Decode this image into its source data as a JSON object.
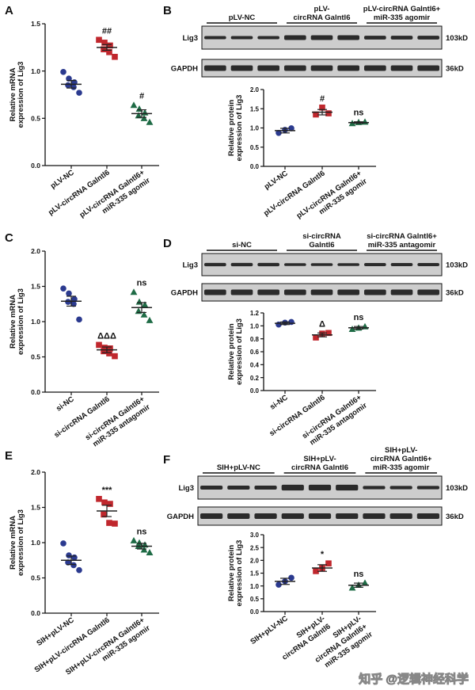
{
  "panels": [
    {
      "letter": "A",
      "kind": "scatter",
      "ylabel": [
        "Relative mRNA",
        "expression of Lig3"
      ],
      "ylim": [
        0,
        1.5
      ],
      "ticks": [
        "0.0",
        "0.5",
        "1.0",
        "1.5"
      ],
      "categories": [
        [
          "pLV-NC"
        ],
        [
          "pLV-circRNA Galntl6"
        ],
        [
          "pLV-circRNA Galntl6+",
          "miR-335 agomir"
        ]
      ],
      "groups": [
        {
          "color": "#2b3a8f",
          "shape": "circle",
          "mean": 0.86,
          "sem": 0.04,
          "points": [
            0.99,
            0.92,
            0.88,
            0.85,
            0.83,
            0.77
          ],
          "mark": ""
        },
        {
          "color": "#c0272d",
          "shape": "square",
          "mean": 1.25,
          "sem": 0.03,
          "points": [
            1.33,
            1.3,
            1.27,
            1.23,
            1.2,
            1.15
          ],
          "mark": "##"
        },
        {
          "color": "#1e6b45",
          "shape": "triangle",
          "mean": 0.55,
          "sem": 0.04,
          "points": [
            0.64,
            0.6,
            0.56,
            0.53,
            0.5,
            0.46
          ],
          "mark": "#"
        }
      ]
    },
    {
      "letter": "B",
      "kind": "blot",
      "blot_groups": [
        [
          "pLV-NC"
        ],
        [
          "pLV-",
          "circRNA Galntl6"
        ],
        [
          "pLV-circRNA Galntl6+",
          "miR-335 agomir"
        ]
      ],
      "bands": [
        {
          "name": "Lig3",
          "size": "103kD"
        },
        {
          "name": "GAPDH",
          "size": "36kD"
        }
      ],
      "ylabel": [
        "Relative protein",
        "expression of Lig3"
      ],
      "ylim": [
        0,
        2.0
      ],
      "ticks": [
        "0.0",
        "0.5",
        "1.0",
        "1.5",
        "2.0"
      ],
      "categories": [
        [
          "pLV-NC"
        ],
        [
          "pLV-circRNA Galntl6"
        ],
        [
          "pLV-circRNA Galntl6+",
          "miR-335 agomir"
        ]
      ],
      "groups": [
        {
          "color": "#2b3a8f",
          "shape": "circle",
          "mean": 0.93,
          "sem": 0.06,
          "points": [
            0.87,
            0.95,
            0.99
          ],
          "mark": ""
        },
        {
          "color": "#c0272d",
          "shape": "square",
          "mean": 1.41,
          "sem": 0.07,
          "points": [
            1.35,
            1.53,
            1.38
          ],
          "mark": "#"
        },
        {
          "color": "#1e6b45",
          "shape": "triangle",
          "mean": 1.14,
          "sem": 0.02,
          "points": [
            1.12,
            1.15,
            1.16
          ],
          "mark": "ns"
        }
      ]
    },
    {
      "letter": "C",
      "kind": "scatter",
      "ylabel": [
        "Relative mRNA",
        "expression of Lig3"
      ],
      "ylim": [
        0,
        2.0
      ],
      "ticks": [
        "0.0",
        "0.5",
        "1.0",
        "1.5",
        "2.0"
      ],
      "categories": [
        [
          "si-NC"
        ],
        [
          "si-circRNA Galntl6"
        ],
        [
          "si-circRNA Galntl6+",
          "miR-335 antagomir"
        ]
      ],
      "groups": [
        {
          "color": "#2b3a8f",
          "shape": "circle",
          "mean": 1.29,
          "sem": 0.07,
          "points": [
            1.47,
            1.4,
            1.32,
            1.28,
            1.25,
            1.03
          ],
          "mark": ""
        },
        {
          "color": "#c0272d",
          "shape": "square",
          "mean": 0.6,
          "sem": 0.04,
          "points": [
            0.67,
            0.63,
            0.62,
            0.58,
            0.55,
            0.51
          ],
          "mark": "ΔΔΔ"
        },
        {
          "color": "#1e6b45",
          "shape": "triangle",
          "mean": 1.2,
          "sem": 0.07,
          "points": [
            1.42,
            1.28,
            1.24,
            1.15,
            1.1,
            1.02
          ],
          "mark": "ns"
        }
      ]
    },
    {
      "letter": "D",
      "kind": "blot",
      "blot_groups": [
        [
          "si-NC"
        ],
        [
          "si-circRNA",
          "Galntl6"
        ],
        [
          "si-circRNA Galntl6+",
          "miR-335 antagomir"
        ]
      ],
      "bands": [
        {
          "name": "Lig3",
          "size": "103kD"
        },
        {
          "name": "GAPDH",
          "size": "36kD"
        }
      ],
      "ylabel": [
        "Relative protein",
        "expression of Lig3"
      ],
      "ylim": [
        0,
        1.2
      ],
      "ticks": [
        "0.0",
        "0.2",
        "0.4",
        "0.6",
        "0.8",
        "1.0",
        "1.2"
      ],
      "categories": [
        [
          "si-NC"
        ],
        [
          "si-circRNA Galntl6"
        ],
        [
          "si-circRNA Galntl6+",
          "miR-335 antagomir"
        ]
      ],
      "groups": [
        {
          "color": "#2b3a8f",
          "shape": "circle",
          "mean": 1.04,
          "sem": 0.02,
          "points": [
            1.02,
            1.05,
            1.06
          ],
          "mark": ""
        },
        {
          "color": "#c0272d",
          "shape": "square",
          "mean": 0.86,
          "sem": 0.03,
          "points": [
            0.82,
            0.88,
            0.89
          ],
          "mark": "Δ"
        },
        {
          "color": "#1e6b45",
          "shape": "triangle",
          "mean": 0.97,
          "sem": 0.02,
          "points": [
            0.95,
            0.97,
            0.99
          ],
          "mark": "ns"
        }
      ]
    },
    {
      "letter": "E",
      "kind": "scatter",
      "ylabel": [
        "Relative mRNA",
        "expression of Lig3"
      ],
      "ylim": [
        0,
        2.0
      ],
      "ticks": [
        "0.0",
        "0.5",
        "1.0",
        "1.5",
        "2.0"
      ],
      "categories": [
        [
          "SIH+pLV-NC"
        ],
        [
          "SIH+pLV-circRNA Galntl6"
        ],
        [
          "SIH+pLV-circRNA Galntl6+",
          "miR-335 agomir"
        ]
      ],
      "groups": [
        {
          "color": "#2b3a8f",
          "shape": "circle",
          "mean": 0.75,
          "sem": 0.06,
          "points": [
            0.99,
            0.82,
            0.79,
            0.72,
            0.68,
            0.61
          ],
          "mark": ""
        },
        {
          "color": "#c0272d",
          "shape": "square",
          "mean": 1.45,
          "sem": 0.08,
          "points": [
            1.62,
            1.57,
            1.55,
            1.4,
            1.28,
            1.27
          ],
          "mark": "***"
        },
        {
          "color": "#1e6b45",
          "shape": "triangle",
          "mean": 0.95,
          "sem": 0.04,
          "points": [
            1.03,
            1.0,
            0.97,
            0.95,
            0.9,
            0.86
          ],
          "mark": "ns"
        }
      ]
    },
    {
      "letter": "F",
      "kind": "blot",
      "blot_groups": [
        [
          "SIH+pLV-NC"
        ],
        [
          "SIH+pLV-",
          "circRNA Galntl6"
        ],
        [
          "SIH+pLV-",
          "circRNA Galntl6+",
          "miR-335 agomir"
        ]
      ],
      "bands": [
        {
          "name": "Lig3",
          "size": "103kD"
        },
        {
          "name": "GAPDH",
          "size": "36kD"
        }
      ],
      "ylabel": [
        "Relative protein",
        "expression of Lig3"
      ],
      "ylim": [
        0,
        3.0
      ],
      "ticks": [
        "0.0",
        "0.5",
        "1.0",
        "1.5",
        "2.0",
        "2.5",
        "3.0"
      ],
      "categories": [
        [
          "SIH+pLV-NC"
        ],
        [
          "SIH+pLV-",
          "circRNA Galntl6"
        ],
        [
          "SIH+pLV-",
          "circRNA Galntl6+",
          "miR-335 agomir"
        ]
      ],
      "groups": [
        {
          "color": "#2b3a8f",
          "shape": "circle",
          "mean": 1.18,
          "sem": 0.12,
          "points": [
            1.05,
            1.18,
            1.32
          ],
          "mark": ""
        },
        {
          "color": "#c0272d",
          "shape": "square",
          "mean": 1.7,
          "sem": 0.13,
          "points": [
            1.58,
            1.7,
            1.88
          ],
          "mark": "*"
        },
        {
          "color": "#1e6b45",
          "shape": "triangle",
          "mean": 1.03,
          "sem": 0.08,
          "points": [
            0.93,
            1.04,
            1.12
          ],
          "mark": "ns"
        }
      ]
    }
  ],
  "watermark": "知乎 @逻辑神经科学"
}
